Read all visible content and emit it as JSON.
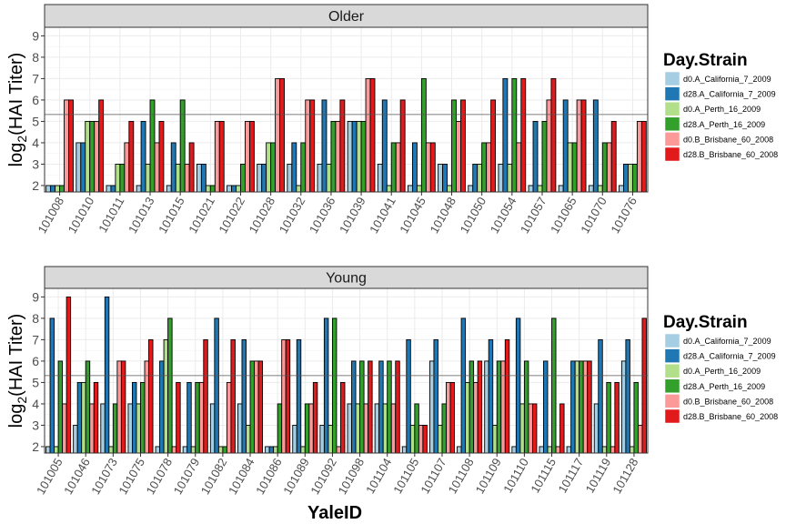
{
  "chart_data": {
    "type": "bar",
    "xlabel": "YaleID",
    "ylabel_base": "log",
    "ylabel_sub": "2",
    "ylabel_rest": "(HAI Titer)",
    "ylim": [
      1.7,
      9.4
    ],
    "yticks": [
      2,
      3,
      4,
      5,
      6,
      7,
      8,
      9
    ],
    "baseline": 1.7,
    "reference_line": 5.32,
    "grid": true,
    "legend": {
      "title": "Day.Strain",
      "placement": "right",
      "entries": [
        {
          "label": "d0.A_California_7_2009",
          "color": "#a6cee3"
        },
        {
          "label": "d28.A_California_7_2009",
          "color": "#1f78b4"
        },
        {
          "label": "d0.A_Perth_16_2009",
          "color": "#b2df8a"
        },
        {
          "label": "d28.A_Perth_16_2009",
          "color": "#33a02c"
        },
        {
          "label": "d0.B_Brisbane_60_2008",
          "color": "#fb9a99"
        },
        {
          "label": "d28.B_Brisbane_60_2008",
          "color": "#e31a1c"
        }
      ]
    },
    "panels": [
      {
        "label": "Older",
        "categories": [
          "101008",
          "101010",
          "101011",
          "101013",
          "101015",
          "101021",
          "101022",
          "101028",
          "101032",
          "101036",
          "101039",
          "101041",
          "101045",
          "101048",
          "101050",
          "101054",
          "101057",
          "101065",
          "101070",
          "101076"
        ],
        "values": [
          [
            2,
            2,
            2,
            2,
            6,
            6
          ],
          [
            4,
            4,
            5,
            5,
            5,
            6
          ],
          [
            2,
            2,
            3,
            3,
            4,
            5
          ],
          [
            2,
            5,
            3,
            6,
            4,
            5
          ],
          [
            2,
            4,
            3,
            6,
            3,
            4
          ],
          [
            3,
            3,
            2,
            2,
            5,
            5
          ],
          [
            2,
            2,
            2,
            3,
            5,
            5
          ],
          [
            3,
            3,
            4,
            4,
            7,
            7
          ],
          [
            3,
            4,
            2,
            4,
            6,
            6
          ],
          [
            3,
            6,
            3,
            5,
            5,
            6
          ],
          [
            5,
            5,
            5,
            5,
            7,
            7
          ],
          [
            3,
            6,
            2,
            4,
            4,
            6
          ],
          [
            2,
            4,
            2,
            7,
            4,
            4
          ],
          [
            3,
            3,
            2,
            6,
            5,
            6
          ],
          [
            2,
            3,
            3,
            4,
            4,
            6
          ],
          [
            3,
            7,
            3,
            7,
            4,
            7
          ],
          [
            2,
            5,
            2,
            5,
            6,
            7
          ],
          [
            2,
            6,
            4,
            4,
            6,
            6
          ],
          [
            2,
            6,
            2,
            4,
            4,
            5
          ],
          [
            2,
            3,
            3,
            3,
            5,
            5
          ]
        ]
      },
      {
        "label": "Young",
        "categories": [
          "101005",
          "101046",
          "101073",
          "101075",
          "101078",
          "101079",
          "101082",
          "101084",
          "101086",
          "101089",
          "101092",
          "101098",
          "101104",
          "101105",
          "101107",
          "101108",
          "101109",
          "101110",
          "101115",
          "101117",
          "101119",
          "101128"
        ],
        "values": [
          [
            2,
            8,
            2,
            6,
            4,
            9
          ],
          [
            3,
            5,
            5,
            6,
            4,
            5
          ],
          [
            4,
            9,
            2,
            4,
            6,
            6
          ],
          [
            4,
            5,
            4,
            5,
            6,
            7
          ],
          [
            2,
            6,
            7,
            8,
            2,
            5
          ],
          [
            2,
            5,
            2,
            5,
            5,
            7
          ],
          [
            4,
            8,
            2,
            2,
            5,
            7
          ],
          [
            4,
            7,
            3,
            6,
            6,
            6
          ],
          [
            2,
            2,
            2,
            4,
            7,
            7
          ],
          [
            3,
            7,
            2,
            4,
            4,
            5
          ],
          [
            3,
            8,
            3,
            8,
            2,
            5
          ],
          [
            4,
            6,
            4,
            6,
            4,
            6
          ],
          [
            4,
            6,
            4,
            6,
            4,
            6
          ],
          [
            2,
            7,
            3,
            4,
            3,
            3
          ],
          [
            6,
            7,
            3,
            4,
            5,
            5
          ],
          [
            2,
            8,
            5,
            6,
            5,
            6
          ],
          [
            6,
            7,
            3,
            6,
            6,
            7
          ],
          [
            2,
            8,
            4,
            6,
            4,
            4
          ],
          [
            2,
            6,
            2,
            8,
            2,
            4
          ],
          [
            2,
            6,
            6,
            6,
            6,
            6
          ],
          [
            4,
            7,
            2,
            5,
            2,
            5
          ],
          [
            6,
            7,
            2,
            5,
            3,
            8
          ]
        ]
      }
    ]
  }
}
